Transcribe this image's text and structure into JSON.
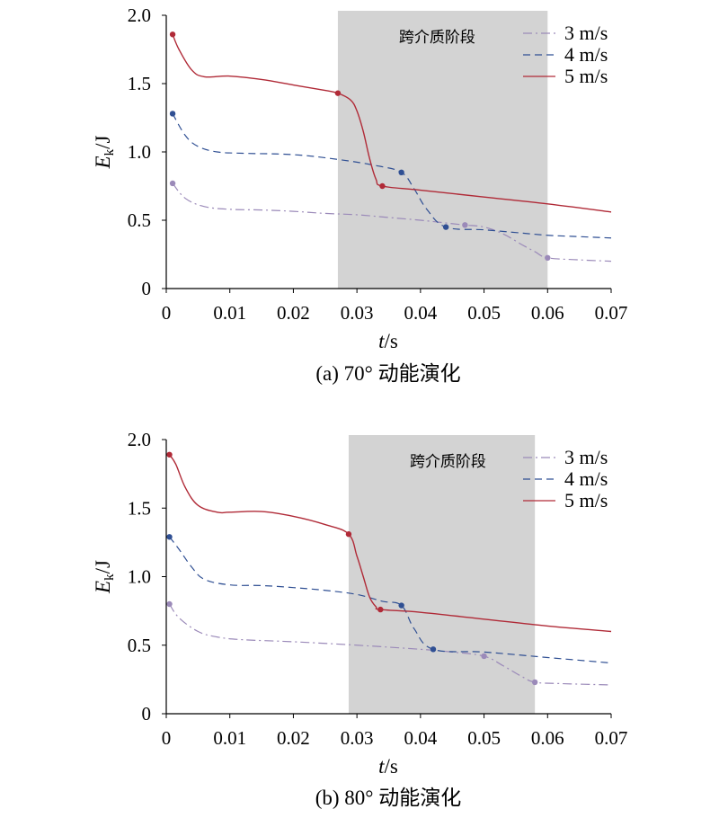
{
  "colors": {
    "s3": "#9b8ab9",
    "s4": "#2f4f93",
    "s5": "#b02a37",
    "region": "#d3d3d3"
  },
  "chart_data": [
    {
      "type": "line",
      "caption": "(a) 70° 动能演化",
      "xlabel_var": "t",
      "xlabel_unit": "/s",
      "ylabel_var": "E",
      "ylabel_sub": "k",
      "ylabel_unit": "/J",
      "xlim": [
        0,
        0.07
      ],
      "ylim": [
        0,
        2.0
      ],
      "xticks": [
        0,
        0.01,
        0.02,
        0.03,
        0.04,
        0.05,
        0.06,
        0.07
      ],
      "xtick_labels": [
        "0",
        "0.01",
        "0.02",
        "0.03",
        "0.04",
        "0.05",
        "0.06",
        "0.07"
      ],
      "yticks": [
        0,
        0.5,
        1.0,
        1.5,
        2.0
      ],
      "ytick_labels": [
        "0",
        "0.5",
        "1.0",
        "1.5",
        "2.0"
      ],
      "shaded_region": {
        "x": [
          0.027,
          0.06
        ],
        "label": "跨介质阶段"
      },
      "legend": "top-right",
      "series": [
        {
          "name": "3 m/s",
          "style": "dashdot",
          "x": [
            0.001,
            0.003,
            0.006,
            0.01,
            0.015,
            0.02,
            0.025,
            0.03,
            0.035,
            0.04,
            0.044,
            0.047,
            0.05,
            0.053,
            0.056,
            0.058,
            0.06,
            0.065,
            0.07
          ],
          "y": [
            0.77,
            0.66,
            0.6,
            0.58,
            0.575,
            0.565,
            0.55,
            0.54,
            0.52,
            0.5,
            0.48,
            0.465,
            0.45,
            0.4,
            0.32,
            0.27,
            0.225,
            0.21,
            0.2
          ],
          "markers": [
            [
              0.001,
              0.77
            ],
            [
              0.047,
              0.465
            ],
            [
              0.06,
              0.225
            ]
          ]
        },
        {
          "name": "4 m/s",
          "style": "dashed",
          "x": [
            0.001,
            0.003,
            0.005,
            0.008,
            0.012,
            0.02,
            0.027,
            0.033,
            0.037,
            0.039,
            0.041,
            0.044,
            0.05,
            0.055,
            0.06,
            0.065,
            0.07
          ],
          "y": [
            1.28,
            1.12,
            1.04,
            1.0,
            0.99,
            0.98,
            0.945,
            0.9,
            0.85,
            0.73,
            0.58,
            0.45,
            0.43,
            0.41,
            0.39,
            0.38,
            0.37
          ],
          "markers": [
            [
              0.001,
              1.28
            ],
            [
              0.037,
              0.85
            ],
            [
              0.044,
              0.45
            ]
          ]
        },
        {
          "name": "5 m/s",
          "style": "solid",
          "x": [
            0.001,
            0.002,
            0.004,
            0.006,
            0.01,
            0.015,
            0.02,
            0.025,
            0.027,
            0.029,
            0.03,
            0.031,
            0.032,
            0.033,
            0.034,
            0.04,
            0.05,
            0.06,
            0.07
          ],
          "y": [
            1.86,
            1.75,
            1.6,
            1.55,
            1.555,
            1.53,
            1.49,
            1.45,
            1.43,
            1.38,
            1.3,
            1.15,
            0.95,
            0.8,
            0.75,
            0.72,
            0.67,
            0.62,
            0.56
          ],
          "markers": [
            [
              0.001,
              1.86
            ],
            [
              0.027,
              1.43
            ],
            [
              0.034,
              0.75
            ]
          ]
        }
      ]
    },
    {
      "type": "line",
      "caption": "(b) 80° 动能演化",
      "xlabel_var": "t",
      "xlabel_unit": "/s",
      "ylabel_var": "E",
      "ylabel_sub": "k",
      "ylabel_unit": "/J",
      "xlim": [
        0,
        0.07
      ],
      "ylim": [
        0,
        2.0
      ],
      "xticks": [
        0,
        0.01,
        0.02,
        0.03,
        0.04,
        0.05,
        0.06,
        0.07
      ],
      "xtick_labels": [
        "0",
        "0.01",
        "0.02",
        "0.03",
        "0.04",
        "0.05",
        "0.06",
        "0.07"
      ],
      "yticks": [
        0,
        0.5,
        1.0,
        1.5,
        2.0
      ],
      "ytick_labels": [
        "0",
        "0.5",
        "1.0",
        "1.5",
        "2.0"
      ],
      "shaded_region": {
        "x": [
          0.0287,
          0.058
        ],
        "label": "跨介质阶段"
      },
      "legend": "top-right",
      "series": [
        {
          "name": "3 m/s",
          "style": "dashdot",
          "x": [
            0.0005,
            0.002,
            0.005,
            0.008,
            0.012,
            0.02,
            0.03,
            0.04,
            0.045,
            0.05,
            0.053,
            0.056,
            0.058,
            0.062,
            0.07
          ],
          "y": [
            0.8,
            0.7,
            0.6,
            0.56,
            0.54,
            0.525,
            0.5,
            0.47,
            0.45,
            0.42,
            0.35,
            0.27,
            0.23,
            0.22,
            0.21
          ],
          "markers": [
            [
              0.0005,
              0.8
            ],
            [
              0.05,
              0.42
            ],
            [
              0.058,
              0.23
            ]
          ]
        },
        {
          "name": "4 m/s",
          "style": "dashed",
          "x": [
            0.0005,
            0.002,
            0.004,
            0.006,
            0.01,
            0.015,
            0.02,
            0.025,
            0.03,
            0.034,
            0.037,
            0.039,
            0.042,
            0.05,
            0.06,
            0.07
          ],
          "y": [
            1.29,
            1.2,
            1.07,
            0.98,
            0.94,
            0.935,
            0.92,
            0.9,
            0.87,
            0.82,
            0.79,
            0.62,
            0.47,
            0.45,
            0.41,
            0.37
          ],
          "markers": [
            [
              0.0005,
              1.29
            ],
            [
              0.037,
              0.79
            ],
            [
              0.042,
              0.47
            ]
          ]
        },
        {
          "name": "5 m/s",
          "style": "solid",
          "x": [
            0.0005,
            0.0015,
            0.003,
            0.005,
            0.008,
            0.01,
            0.015,
            0.02,
            0.025,
            0.0287,
            0.03,
            0.031,
            0.032,
            0.033,
            0.0337,
            0.04,
            0.05,
            0.06,
            0.07
          ],
          "y": [
            1.89,
            1.82,
            1.65,
            1.52,
            1.47,
            1.47,
            1.475,
            1.44,
            1.38,
            1.31,
            1.15,
            1.0,
            0.85,
            0.78,
            0.76,
            0.74,
            0.69,
            0.64,
            0.6
          ],
          "markers": [
            [
              0.0005,
              1.89
            ],
            [
              0.0287,
              1.31
            ],
            [
              0.0337,
              0.76
            ]
          ]
        }
      ]
    }
  ]
}
